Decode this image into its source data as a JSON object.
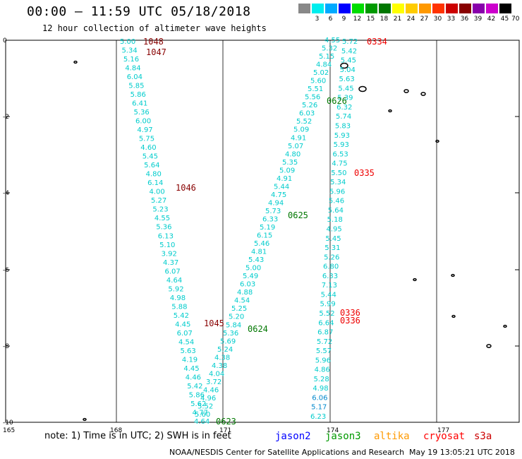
{
  "header": {
    "title": "00:00 – 11:59 UTC 05/18/2018",
    "subtitle": "12 hour collection of altimeter wave heights"
  },
  "legend": {
    "unit": "(ft)",
    "colors": [
      "#888888",
      "#00eeee",
      "#00aaff",
      "#0000ff",
      "#00dd00",
      "#009900",
      "#007700",
      "#ffff00",
      "#ffcc00",
      "#ff9900",
      "#ff3300",
      "#cc0000",
      "#880000",
      "#8800aa",
      "#cc00cc",
      "#000000"
    ],
    "labels": [
      "3",
      "6",
      "9",
      "12",
      "15",
      "18",
      "21",
      "24",
      "27",
      "30",
      "33",
      "36",
      "39",
      "42",
      "45",
      "70"
    ]
  },
  "axes": {
    "y_labels": [
      "0",
      "-2",
      "-4",
      "-6",
      "-8",
      "-10"
    ],
    "x_labels": [
      "165",
      "168",
      "171",
      "174",
      "177"
    ]
  },
  "tracks": {
    "left_column": [
      "5.00",
      "5.34",
      "5.16",
      "4.84",
      "6.04",
      "5.85",
      "5.86",
      "6.41",
      "5.36",
      "6.00",
      "4.97",
      "5.75",
      "4.60",
      "5.45",
      "5.64",
      "4.80",
      "6.14",
      "4.00",
      "5.27",
      "5.23",
      "4.55",
      "5.36",
      "6.13",
      "5.10",
      "3.92",
      "4.37",
      "6.07",
      "4.64",
      "5.92",
      "4.98",
      "5.88",
      "5.42",
      "4.45",
      "6.07",
      "4.54",
      "5.63",
      "4.19",
      "4.45",
      "4.46",
      "5.42",
      "5.86",
      "5.62",
      "4.77",
      "4.64"
    ],
    "middle_column": [
      "5.60",
      "5.52",
      "4.96",
      "4.46",
      "3.72",
      "4.04",
      "4.38",
      "4.38",
      "5.24",
      "5.69",
      "5.36",
      "5.84",
      "5.20",
      "5.25",
      "4.54",
      "4.88",
      "6.03",
      "5.49",
      "5.00",
      "5.43",
      "4.81",
      "5.46",
      "6.15",
      "5.19",
      "6.33",
      "5.73",
      "4.94",
      "4.75",
      "5.44",
      "4.91",
      "5.09",
      "5.35",
      "4.80",
      "5.07",
      "4.91",
      "5.09",
      "5.52",
      "6.03",
      "5.26",
      "5.56",
      "5.51",
      "5.60",
      "5.02",
      "4.84",
      "5.15",
      "5.32",
      "4.55"
    ],
    "right_column": [
      "5.72",
      "5.42",
      "5.45",
      "5.04",
      "5.63",
      "5.45",
      "5.39",
      "6.32",
      "5.74",
      "5.83",
      "5.93",
      "5.93",
      "6.53",
      "4.75",
      "5.50",
      "5.34",
      "5.96",
      "5.46",
      "5.64",
      "5.18",
      "4.95",
      "5.45",
      "5.31",
      "5.26",
      "6.80",
      "6.33",
      "7.13",
      "5.44",
      "5.99",
      "5.52",
      "6.64",
      "6.87",
      "5.72",
      "5.57",
      "5.96",
      "4.86",
      "5.28",
      "4.98",
      "6.06",
      "5.17",
      "6.23"
    ],
    "times_left": [
      "1048",
      "1047",
      "1046",
      "1045"
    ],
    "times_middle": [
      "0626",
      "0625",
      "0624",
      "0623"
    ],
    "times_right": [
      "0334",
      "0335",
      "0336",
      "0336"
    ]
  },
  "notes": {
    "note": "note: 1) Time is in UTC; 2) SWH is in feet",
    "sat1": "jason2",
    "sat2": "jason3",
    "sat3": "altika",
    "sat4": "cryosat",
    "sat5": "s3a"
  },
  "footer": {
    "agency": "NOAA/NESDIS Center for Satellite Applications and Research",
    "stamp": "May 19 13:05:21 UTC 2018"
  }
}
